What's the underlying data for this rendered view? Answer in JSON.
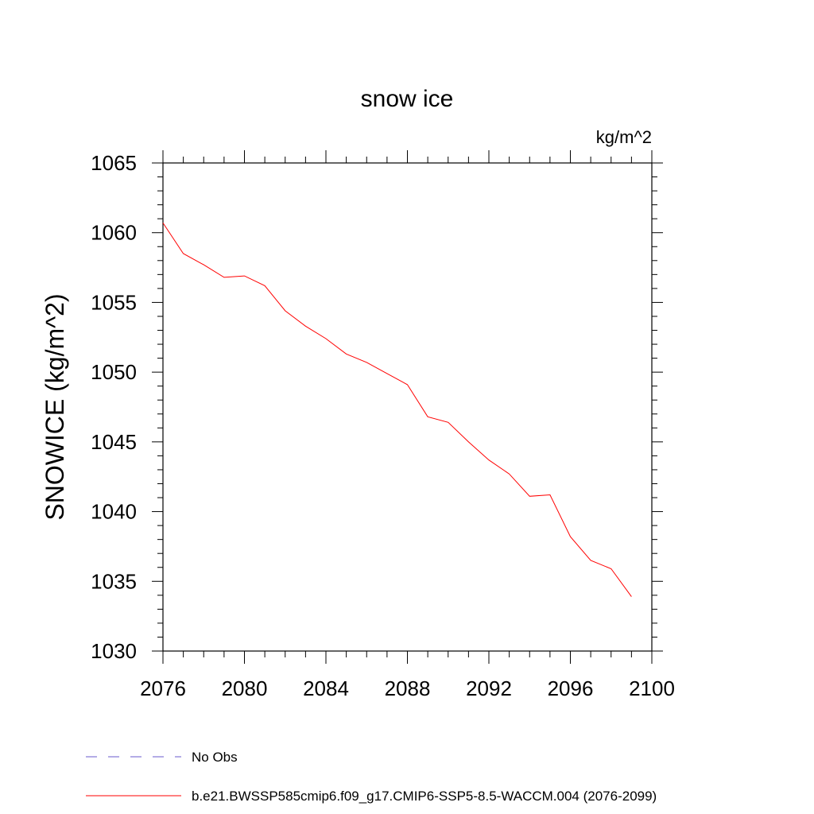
{
  "chart_data": {
    "type": "line",
    "title": "snow ice",
    "units_label": "kg/m^2",
    "xlabel": "",
    "ylabel": "SNOWICE  (kg/m^2)",
    "xlim": [
      2076,
      2100
    ],
    "ylim": [
      1030,
      1065
    ],
    "x_ticks": [
      2076,
      2080,
      2084,
      2088,
      2092,
      2096,
      2100
    ],
    "x_tick_labels": [
      "2076",
      "2080",
      "2084",
      "2088",
      "2092",
      "2096",
      "2100"
    ],
    "y_ticks": [
      1030,
      1035,
      1040,
      1045,
      1050,
      1055,
      1060,
      1065
    ],
    "y_tick_labels": [
      "1030",
      "1035",
      "1040",
      "1045",
      "1050",
      "1055",
      "1060",
      "1065"
    ],
    "grid": false,
    "legend_position": "bottom",
    "series": [
      {
        "name": "b.e21.BWSSP585cmip6.f09_g17.CMIP6-SSP5-8.5-WACCM.004 (2076-2099)",
        "color": "#ff0000",
        "style": "solid",
        "x": [
          2076,
          2077,
          2078,
          2079,
          2080,
          2081,
          2082,
          2083,
          2084,
          2085,
          2086,
          2087,
          2088,
          2089,
          2090,
          2091,
          2092,
          2093,
          2094,
          2095,
          2096,
          2097,
          2098,
          2099
        ],
        "y": [
          1060.7,
          1058.5,
          1057.7,
          1056.8,
          1056.9,
          1056.2,
          1054.4,
          1053.3,
          1052.4,
          1051.3,
          1050.7,
          1049.9,
          1049.1,
          1046.8,
          1046.4,
          1045.0,
          1043.7,
          1042.7,
          1041.1,
          1041.2,
          1038.2,
          1036.5,
          1035.9,
          1033.9
        ]
      }
    ],
    "legend": [
      {
        "label": "No Obs",
        "color": "#6a5acd",
        "style": "dashed"
      },
      {
        "label": "b.e21.BWSSP585cmip6.f09_g17.CMIP6-SSP5-8.5-WACCM.004 (2076-2099)",
        "color": "#ff0000",
        "style": "solid"
      }
    ]
  }
}
